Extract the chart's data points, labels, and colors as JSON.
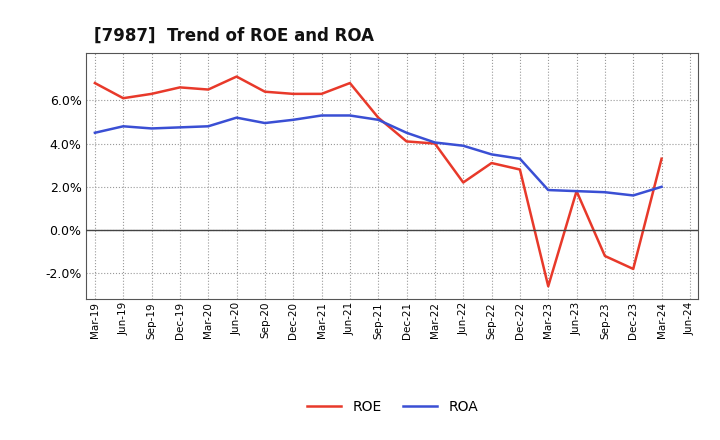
{
  "title": "[7987]  Trend of ROE and ROA",
  "x_labels": [
    "Mar-19",
    "Jun-19",
    "Sep-19",
    "Dec-19",
    "Mar-20",
    "Jun-20",
    "Sep-20",
    "Dec-20",
    "Mar-21",
    "Jun-21",
    "Sep-21",
    "Dec-21",
    "Mar-22",
    "Jun-22",
    "Sep-22",
    "Dec-22",
    "Mar-23",
    "Jun-23",
    "Sep-23",
    "Dec-23",
    "Mar-24",
    "Jun-24"
  ],
  "roe": [
    6.8,
    6.1,
    6.3,
    6.6,
    6.5,
    7.1,
    6.4,
    6.3,
    6.3,
    6.8,
    5.2,
    4.1,
    4.0,
    2.2,
    3.1,
    2.8,
    -2.6,
    1.8,
    -1.2,
    -1.8,
    3.3,
    null
  ],
  "roa": [
    4.5,
    4.8,
    4.7,
    4.75,
    4.8,
    5.2,
    4.95,
    5.1,
    5.3,
    5.3,
    5.1,
    4.5,
    4.05,
    3.9,
    3.5,
    3.3,
    1.85,
    1.8,
    1.75,
    1.6,
    2.0,
    null
  ],
  "roe_color": "#e8392a",
  "roa_color": "#3a4fd4",
  "background_color": "#ffffff",
  "grid_color": "#999999",
  "ylim": [
    -3.2,
    8.2
  ],
  "yticks": [
    -2.0,
    0.0,
    2.0,
    4.0,
    6.0
  ],
  "legend_roe": "ROE",
  "legend_roa": "ROA"
}
